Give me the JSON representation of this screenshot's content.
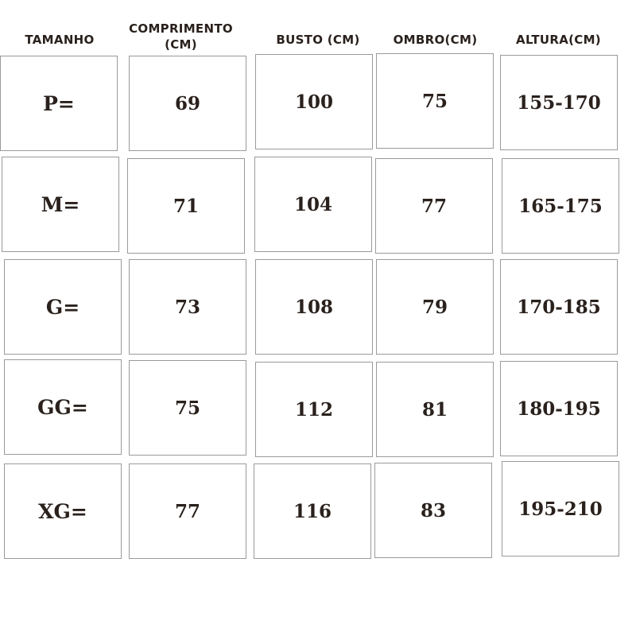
{
  "headers": [
    "TAMANHO",
    "COMPRIMENTO\n(CM)",
    "BUSTO (CM)",
    "OMBRO(CM)",
    "ALTURA(CM)"
  ],
  "rows": [
    [
      "P=",
      "69",
      "100",
      "75",
      "155-170"
    ],
    [
      "M=",
      "71",
      "104",
      "77",
      "165-175"
    ],
    [
      "G=",
      "73",
      "108",
      "79",
      "170-185"
    ],
    [
      "GG=",
      "75",
      "112",
      "81",
      "180-195"
    ],
    [
      "XG=",
      "77",
      "116",
      "83",
      "195-210"
    ]
  ]
}
